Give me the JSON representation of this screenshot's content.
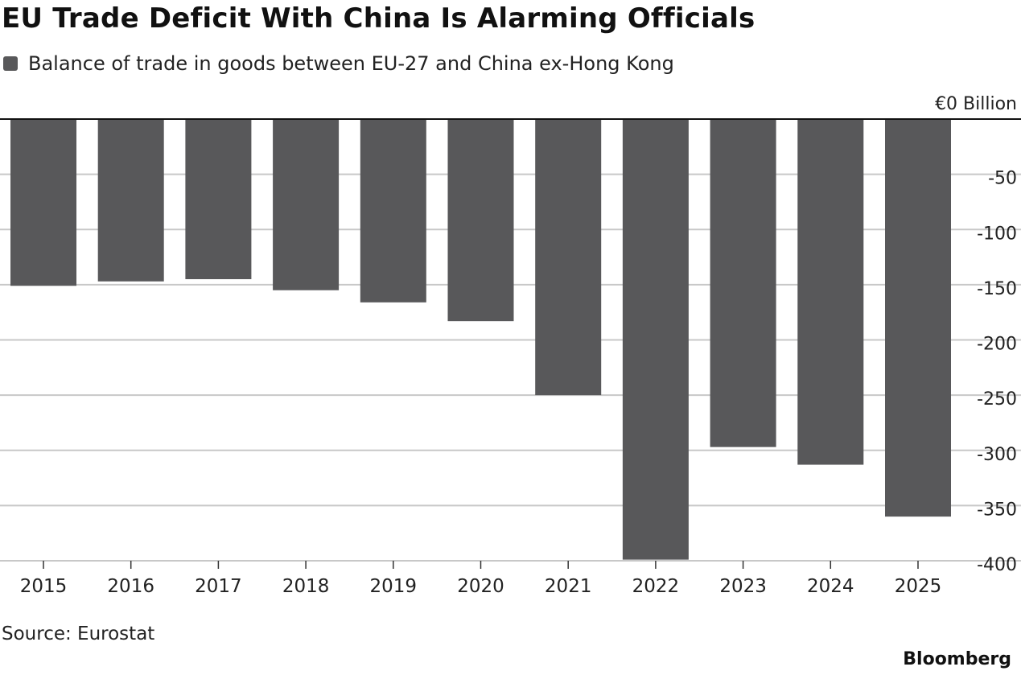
{
  "title": "EU Trade Deficit With China Is Alarming Officials",
  "legend": {
    "label": "Balance of trade in goods between EU-27 and China ex-Hong Kong",
    "swatch_icon": "square-swatch-icon"
  },
  "source": "Source: Eurostat",
  "brand": "Bloomberg",
  "colors": {
    "bar": "#58585a",
    "grid": "#c8c8c8",
    "baseline": "#111111",
    "text": "#222222"
  },
  "chart_data": {
    "type": "bar",
    "title": "EU Trade Deficit With China Is Alarming Officials",
    "series": [
      {
        "name": "Balance of trade in goods between EU-27 and China ex-Hong Kong",
        "values": [
          -151,
          -147,
          -145,
          -155,
          -166,
          -183,
          -250,
          -399,
          -297,
          -313,
          -360
        ]
      }
    ],
    "categories": [
      "2015",
      "2016",
      "2017",
      "2018",
      "2019",
      "2020",
      "2021",
      "2022",
      "2023",
      "2024",
      "2025"
    ],
    "yticks": [
      0,
      -50,
      -100,
      -150,
      -200,
      -250,
      -300,
      -350,
      -400
    ],
    "ytick_labels": [
      "€0 Billion",
      "-50",
      "-100",
      "-150",
      "-200",
      "-250",
      "-300",
      "-350",
      "-400"
    ],
    "ylim": [
      -400,
      0
    ],
    "xlabel": "",
    "ylabel": "",
    "grid": true,
    "legend_position": "top-left"
  }
}
